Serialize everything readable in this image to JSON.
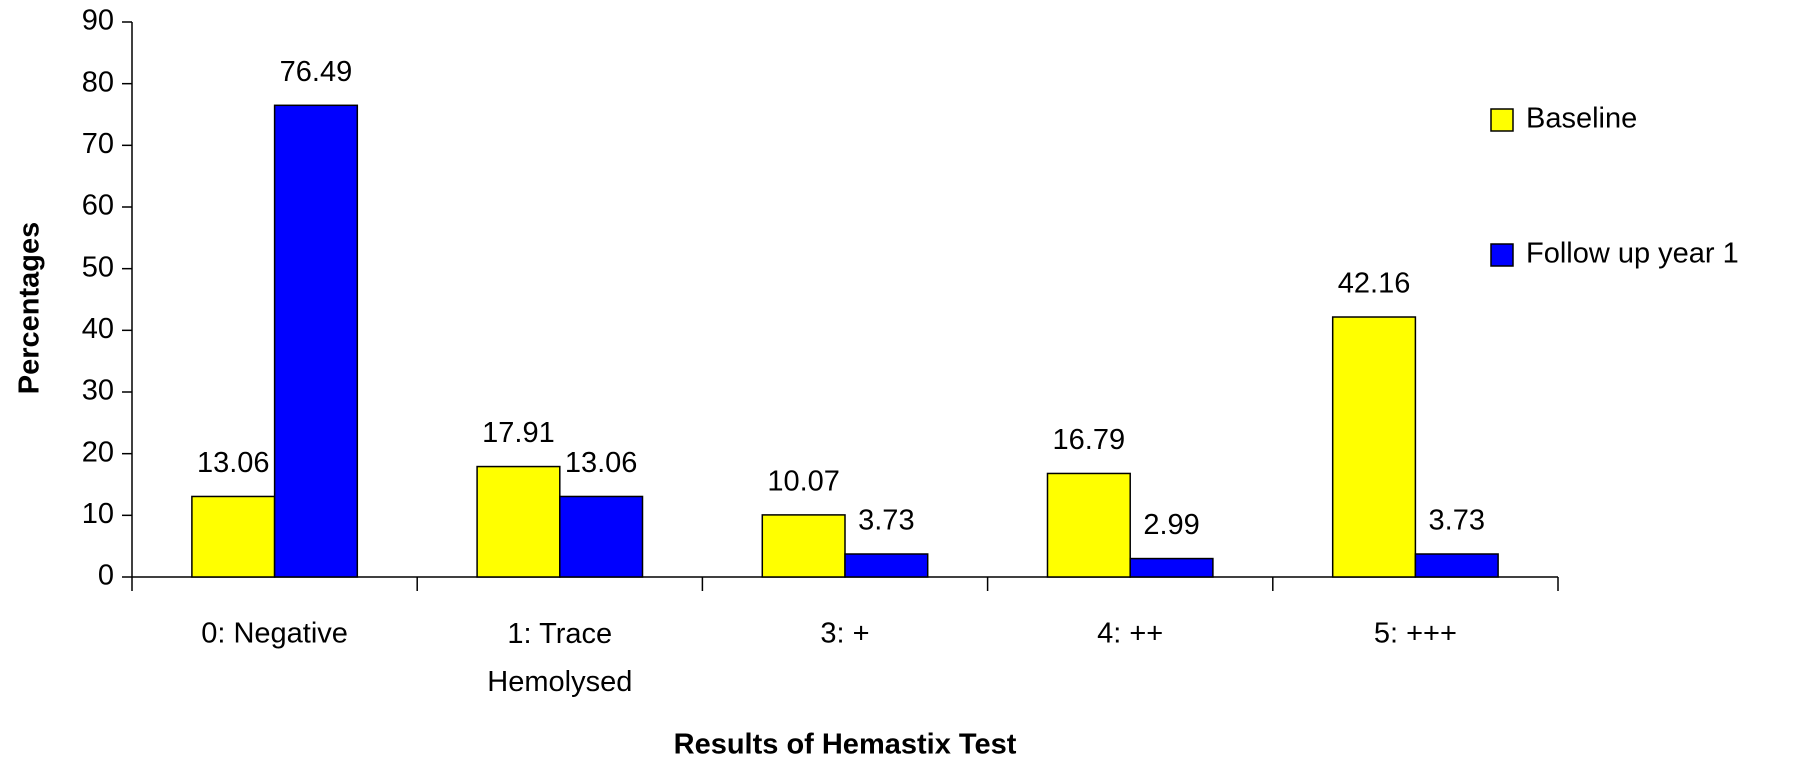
{
  "chart_data": {
    "type": "bar",
    "categories": [
      "0: Negative",
      "1: Trace\nHemolysed",
      "3: +",
      "4: ++",
      "5: +++"
    ],
    "series": [
      {
        "name": "Baseline",
        "color": "#ffff00",
        "values": [
          13.06,
          17.91,
          10.07,
          16.79,
          42.16
        ]
      },
      {
        "name": "Follow up year 1",
        "color": "#0000ff",
        "values": [
          76.49,
          13.06,
          3.73,
          2.99,
          3.73
        ]
      }
    ],
    "xlabel": "Results of Hemastix Test",
    "ylabel": "Percentages",
    "ylim": [
      0,
      90
    ],
    "yticks": [
      0,
      10,
      20,
      30,
      40,
      50,
      60,
      70,
      80,
      90
    ],
    "legend": "right"
  }
}
